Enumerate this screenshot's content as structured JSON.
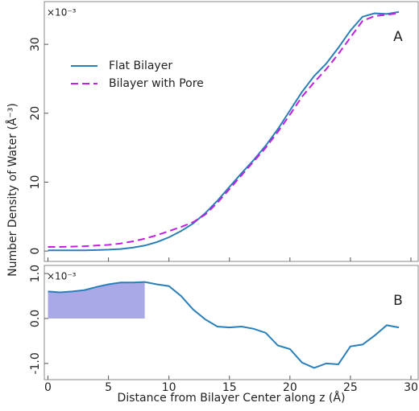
{
  "chart_data": [
    {
      "type": "line",
      "panel_label": "A",
      "y_multiplier": "×10⁻³",
      "ylabel": "Number Density of Water (Å⁻³)",
      "x": [
        0,
        1,
        2,
        3,
        4,
        5,
        6,
        7,
        8,
        9,
        10,
        11,
        12,
        13,
        14,
        15,
        16,
        17,
        18,
        19,
        20,
        21,
        22,
        23,
        24,
        25,
        26,
        27,
        28,
        29
      ],
      "series": [
        {
          "name": "Flat Bilayer",
          "color": "#2a7fb8",
          "style": "solid",
          "values": [
            0.1,
            0.1,
            0.1,
            0.1,
            0.15,
            0.2,
            0.3,
            0.5,
            0.8,
            1.3,
            2.0,
            2.9,
            4.0,
            5.5,
            7.3,
            9.3,
            11.3,
            13.2,
            15.3,
            17.7,
            20.4,
            23.1,
            25.4,
            27.2,
            29.5,
            32.0,
            34.0,
            34.5,
            34.4,
            34.7
          ]
        },
        {
          "name": "Bilayer with Pore",
          "color": "#c020e0",
          "style": "dashed",
          "values": [
            0.6,
            0.6,
            0.65,
            0.7,
            0.8,
            0.9,
            1.1,
            1.4,
            1.8,
            2.3,
            2.9,
            3.5,
            4.2,
            5.3,
            7.0,
            9.0,
            11.0,
            13.0,
            15.0,
            17.3,
            19.8,
            22.4,
            24.5,
            26.4,
            28.6,
            31.0,
            33.4,
            34.1,
            34.3,
            34.5
          ]
        }
      ],
      "xlim": [
        -0.3,
        30.6
      ],
      "xticks": [
        0,
        5,
        10,
        15,
        20,
        25,
        30
      ],
      "ylim": [
        -1.5,
        36.2
      ],
      "yticks": [
        0,
        10,
        20,
        30
      ],
      "legend": true,
      "legend_position": "upper left"
    },
    {
      "type": "line",
      "panel_label": "B",
      "y_multiplier": "×10⁻³",
      "xlabel": "Distance from Bilayer Center along z (Å)",
      "x": [
        0,
        1,
        2,
        3,
        4,
        5,
        6,
        7,
        8,
        9,
        10,
        11,
        12,
        13,
        14,
        15,
        16,
        17,
        18,
        19,
        20,
        21,
        22,
        23,
        24,
        25,
        26,
        27,
        28,
        29
      ],
      "series": [
        {
          "color": "#2a7fb8",
          "style": "solid",
          "values": [
            0.6,
            0.58,
            0.6,
            0.63,
            0.7,
            0.76,
            0.8,
            0.8,
            0.81,
            0.76,
            0.72,
            0.5,
            0.2,
            -0.02,
            -0.18,
            -0.2,
            -0.18,
            -0.23,
            -0.32,
            -0.6,
            -0.68,
            -0.98,
            -1.1,
            -1.0,
            -1.02,
            -0.62,
            -0.58,
            -0.38,
            -0.15,
            -0.2
          ]
        }
      ],
      "highlight": {
        "x": [
          0,
          8
        ],
        "color": "#8c8ce0"
      },
      "xlim": [
        -0.3,
        30.6
      ],
      "xticks": [
        0,
        5,
        10,
        15,
        20,
        25,
        30
      ],
      "ylim": [
        -1.36,
        1.18
      ],
      "yticks": [
        {
          "value": -1,
          "label": "-1.0"
        },
        {
          "value": 0,
          "label": "0.0"
        },
        {
          "value": 1,
          "label": "1.0"
        }
      ]
    }
  ]
}
